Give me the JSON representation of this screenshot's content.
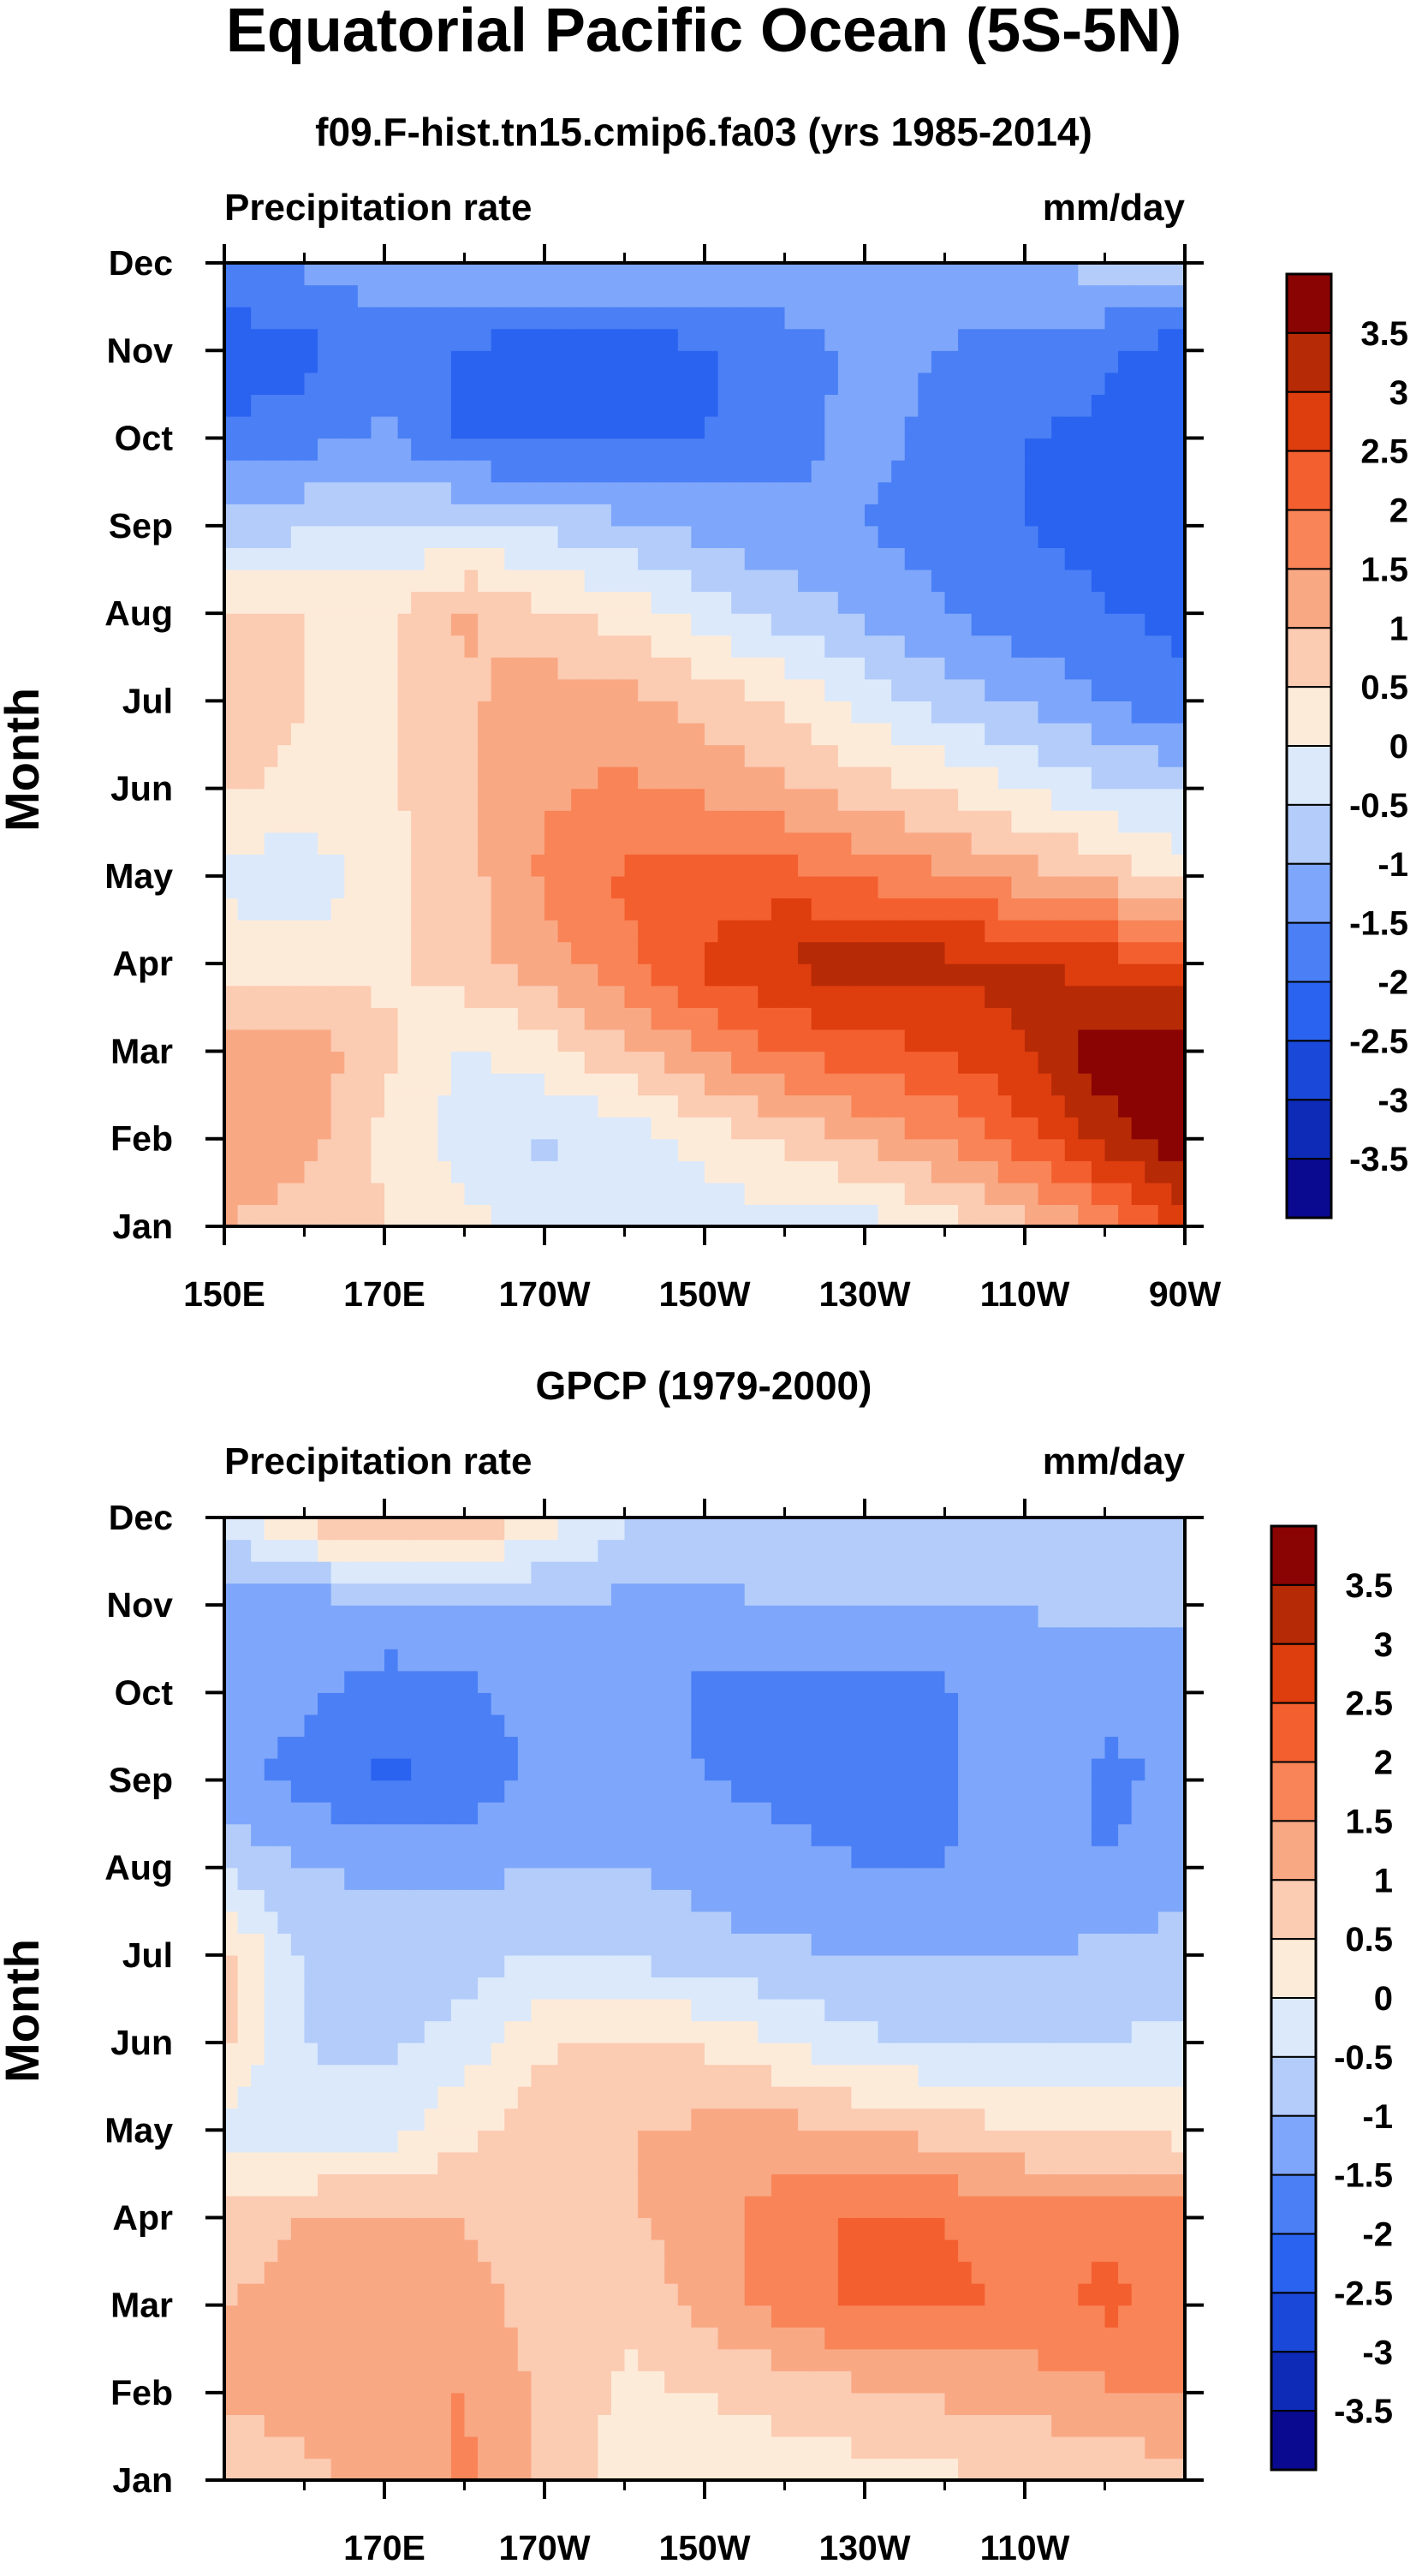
{
  "chart_data": [
    {
      "type": "heatmap",
      "title": "Equatorial Pacific Ocean (5S-5N)",
      "subtitle": "f09.F-hist.tn15.cmip6.fa03 (yrs 1985-2014)",
      "left_string": "Precipitation rate",
      "right_string": "mm/day",
      "xlabel": "",
      "ylabel": "Month",
      "x_ticks": [
        "150E",
        "170E",
        "170W",
        "150W",
        "130W",
        "110W",
        "90W"
      ],
      "x_tick_lons": [
        150,
        170,
        190,
        210,
        230,
        250,
        270
      ],
      "y_ticks": [
        "Jan",
        "Feb",
        "Mar",
        "Apr",
        "May",
        "Jun",
        "Jul",
        "Aug",
        "Sep",
        "Oct",
        "Nov",
        "Dec"
      ],
      "xlim": [
        150,
        270
      ],
      "colorbar_labels": [
        "3.5",
        "3",
        "2.5",
        "2",
        "1.5",
        "1",
        "0.5",
        "0",
        "-0.5",
        "-1",
        "-1.5",
        "-2",
        "-2.5",
        "-3",
        "-3.5"
      ],
      "x": [
        150,
        160,
        170,
        180,
        190,
        200,
        210,
        220,
        230,
        240,
        250,
        260,
        270
      ],
      "values": [
        [
          1.0,
          0.8,
          0.5,
          0.2,
          -0.2,
          -0.3,
          -0.3,
          -0.2,
          -0.2,
          0.2,
          0.8,
          1.6,
          2.6
        ],
        [
          1.3,
          1.2,
          0.4,
          -0.3,
          -0.6,
          -0.3,
          0.2,
          0.6,
          1.1,
          1.6,
          2.3,
          3.2,
          3.9
        ],
        [
          1.2,
          1.4,
          0.6,
          -0.1,
          0.3,
          0.9,
          1.5,
          2.0,
          2.3,
          2.5,
          3.0,
          3.8,
          3.9
        ],
        [
          0.4,
          0.3,
          0.4,
          0.8,
          1.3,
          1.8,
          2.6,
          3.1,
          3.2,
          3.2,
          3.1,
          2.8,
          2.5
        ],
        [
          -0.2,
          -0.4,
          0.3,
          0.8,
          1.6,
          2.1,
          2.2,
          2.2,
          1.9,
          1.6,
          1.2,
          0.8,
          0.3
        ],
        [
          0.6,
          0.4,
          0.4,
          0.9,
          1.4,
          1.6,
          1.4,
          1.1,
          0.7,
          0.4,
          0.0,
          -0.4,
          -0.6
        ],
        [
          0.7,
          0.5,
          0.4,
          0.9,
          1.3,
          1.2,
          0.8,
          0.4,
          -0.2,
          -0.7,
          -1.1,
          -1.5,
          -1.9
        ],
        [
          0.6,
          0.5,
          0.4,
          1.1,
          0.6,
          0.3,
          -0.2,
          -0.7,
          -1.1,
          -1.5,
          -1.8,
          -2.0,
          -2.1
        ],
        [
          -0.8,
          -0.6,
          -0.5,
          -0.4,
          -0.6,
          -0.9,
          -1.2,
          -1.4,
          -1.5,
          -1.7,
          -2.0,
          -2.1,
          -2.2
        ],
        [
          -1.9,
          -1.7,
          -1.4,
          -2.1,
          -2.2,
          -2.1,
          -2.0,
          -1.6,
          -1.4,
          -1.6,
          -2.0,
          -2.1,
          -2.3
        ],
        [
          -2.3,
          -2.2,
          -1.6,
          -2.1,
          -2.2,
          -2.2,
          -2.1,
          -1.7,
          -1.4,
          -1.5,
          -1.8,
          -1.9,
          -2.3
        ],
        [
          -1.6,
          -1.4,
          -1.3,
          -1.1,
          -1.0,
          -1.0,
          -1.1,
          -1.2,
          -1.1,
          -1.0,
          -1.0,
          -0.8,
          -0.6
        ]
      ]
    },
    {
      "type": "heatmap",
      "title": "GPCP (1979-2000)",
      "left_string": "Precipitation rate",
      "right_string": "mm/day",
      "xlabel": "",
      "ylabel": "Month",
      "x_ticks": [
        "170E",
        "170W",
        "150W",
        "130W",
        "110W"
      ],
      "x_tick_lons": [
        170,
        190,
        210,
        230,
        250
      ],
      "y_ticks": [
        "Jan",
        "Feb",
        "Mar",
        "Apr",
        "May",
        "Jun",
        "Jul",
        "Aug",
        "Sep",
        "Oct",
        "Nov",
        "Dec"
      ],
      "xlim": [
        150,
        270
      ],
      "colorbar_labels": [
        "3.5",
        "3",
        "2.5",
        "2",
        "1.5",
        "1",
        "0.5",
        "0",
        "-0.5",
        "-1",
        "-1.5",
        "-2",
        "-2.5",
        "-3",
        "-3.5"
      ],
      "x": [
        150,
        160,
        170,
        180,
        190,
        200,
        210,
        220,
        230,
        240,
        250,
        260,
        270
      ],
      "values": [
        [
          0.6,
          0.8,
          1.2,
          1.6,
          0.8,
          0.3,
          0.2,
          0.2,
          0.3,
          0.4,
          0.5,
          0.6,
          0.8
        ],
        [
          1.1,
          1.3,
          1.4,
          1.5,
          0.9,
          0.4,
          0.5,
          0.7,
          0.9,
          1.1,
          1.2,
          1.4,
          1.6
        ],
        [
          1.0,
          1.3,
          1.2,
          1.3,
          0.7,
          0.6,
          1.2,
          1.7,
          2.1,
          2.1,
          1.9,
          2.1,
          1.9
        ],
        [
          0.6,
          1.0,
          1.1,
          1.0,
          0.5,
          0.9,
          1.3,
          1.8,
          2.1,
          2.0,
          1.8,
          1.9,
          1.7
        ],
        [
          -0.2,
          -0.4,
          -0.3,
          0.4,
          0.8,
          1.0,
          1.1,
          1.2,
          1.0,
          0.8,
          0.5,
          0.4,
          0.3
        ],
        [
          0.6,
          -0.5,
          -0.6,
          -0.3,
          0.4,
          0.6,
          0.4,
          0.0,
          -0.4,
          -0.6,
          -0.6,
          -0.5,
          -0.3
        ],
        [
          0.7,
          -0.6,
          -0.8,
          -0.7,
          -0.5,
          -0.6,
          -0.8,
          -0.9,
          -1.0,
          -1.0,
          -1.0,
          -0.9,
          -0.8
        ],
        [
          -0.6,
          -1.0,
          -1.1,
          -1.1,
          -1.0,
          -1.0,
          -1.2,
          -1.4,
          -1.5,
          -1.5,
          -1.3,
          -1.5,
          -1.2
        ],
        [
          -1.4,
          -1.6,
          -2.1,
          -1.9,
          -1.3,
          -1.1,
          -1.5,
          -1.6,
          -1.6,
          -1.6,
          -1.1,
          -1.6,
          -1.4
        ],
        [
          -1.5,
          -1.4,
          -1.7,
          -1.6,
          -1.3,
          -1.2,
          -1.6,
          -1.6,
          -1.7,
          -1.6,
          -1.1,
          -1.4,
          -1.4
        ],
        [
          -1.4,
          -1.3,
          -1.2,
          -1.1,
          -1.1,
          -1.1,
          -1.1,
          -1.0,
          -1.0,
          -1.0,
          -1.0,
          -0.9,
          -0.9
        ],
        [
          -0.3,
          0.6,
          1.3,
          1.1,
          0.3,
          -0.4,
          -0.6,
          -0.7,
          -0.8,
          -0.8,
          -0.7,
          -0.7,
          -0.6
        ]
      ]
    }
  ]
}
